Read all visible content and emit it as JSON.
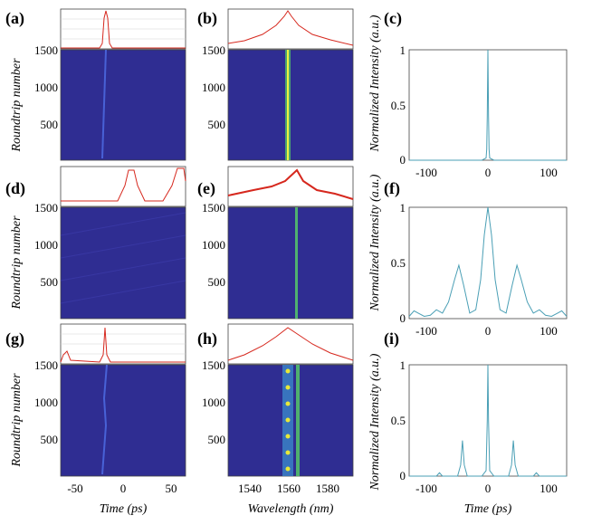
{
  "colors": {
    "heatmap_bg": "#2f2d92",
    "spectrum_line": "#d6281e",
    "acf_line": "#4a9fb5",
    "grid": "#d4d4d4"
  },
  "chart_data": [
    {
      "panel": "(a)",
      "type": "heatmap",
      "ylabel": "Roundtrip number",
      "yticks": [
        "1500",
        "1000",
        "500"
      ],
      "ylim": [
        0,
        1500
      ],
      "xlim": [
        -65,
        65
      ],
      "description_of_trace": "single pulse near -22 ps drifting slightly"
    },
    {
      "panel": "(b)",
      "type": "heatmap",
      "yticks": [
        "1500",
        "1000",
        "500"
      ],
      "ylim": [
        0,
        1500
      ],
      "xlim": [
        1525,
        1595
      ],
      "center": 1560
    },
    {
      "panel": "(c)",
      "type": "line",
      "ylabel": "Normalized Intensity (a.u.)",
      "yticks": [
        "1",
        "0.5",
        "0"
      ],
      "xticks": [
        "-100",
        "0",
        "100"
      ],
      "xlim": [
        -130,
        130
      ],
      "ylim": [
        0,
        1
      ],
      "series": [
        {
          "x": [
            -130,
            -10,
            -3,
            -2,
            -1,
            0,
            1,
            2,
            3,
            10,
            130
          ],
          "y": [
            0,
            0,
            0.02,
            0.1,
            0.4,
            1,
            0.4,
            0.1,
            0.02,
            0,
            0
          ]
        }
      ]
    },
    {
      "panel": "(d)",
      "type": "heatmap",
      "ylabel": "Roundtrip number",
      "yticks": [
        "1500",
        "1000",
        "500"
      ],
      "ylim": [
        0,
        1500
      ],
      "xlim": [
        -65,
        65
      ]
    },
    {
      "panel": "(e)",
      "type": "heatmap",
      "yticks": [
        "1500",
        "1000",
        "500"
      ],
      "ylim": [
        0,
        1500
      ],
      "xlim": [
        1525,
        1595
      ],
      "center": 1565
    },
    {
      "panel": "(f)",
      "type": "line",
      "ylabel": "Normalized Intensity (a.u.)",
      "yticks": [
        "1",
        "0.5",
        "0"
      ],
      "xticks": [
        "-100",
        "0",
        "100"
      ],
      "xlim": [
        -130,
        130
      ],
      "ylim": [
        0,
        1
      ],
      "series": [
        {
          "x": [
            -130,
            -122,
            -115,
            -105,
            -95,
            -85,
            -75,
            -65,
            -55,
            -48,
            -40,
            -30,
            -20,
            -12,
            -6,
            0,
            6,
            12,
            20,
            30,
            40,
            48,
            55,
            65,
            75,
            85,
            95,
            105,
            115,
            122,
            130
          ],
          "y": [
            0.02,
            0.07,
            0.05,
            0.02,
            0.03,
            0.08,
            0.05,
            0.15,
            0.35,
            0.48,
            0.3,
            0.05,
            0.08,
            0.35,
            0.75,
            1.0,
            0.75,
            0.35,
            0.08,
            0.05,
            0.3,
            0.48,
            0.35,
            0.15,
            0.05,
            0.08,
            0.03,
            0.02,
            0.05,
            0.07,
            0.02
          ]
        }
      ]
    },
    {
      "panel": "(g)",
      "type": "heatmap",
      "ylabel": "Roundtrip number",
      "xlabel": "Time (ps)",
      "yticks": [
        "1500",
        "1000",
        "500"
      ],
      "xticks": [
        "-50",
        "0",
        "50"
      ],
      "ylim": [
        0,
        1500
      ],
      "xlim": [
        -65,
        65
      ]
    },
    {
      "panel": "(h)",
      "type": "heatmap",
      "xlabel": "Wavelength (nm)",
      "yticks": [
        "1500",
        "1000",
        "500"
      ],
      "xticks": [
        "1540",
        "1560",
        "1580"
      ],
      "ylim": [
        0,
        1500
      ],
      "xlim": [
        1525,
        1595
      ]
    },
    {
      "panel": "(i)",
      "type": "line",
      "ylabel": "Normalized Intensity (a.u.)",
      "xlabel": "Time (ps)",
      "yticks": [
        "1",
        "0.5",
        "0"
      ],
      "xticks": [
        "-100",
        "0",
        "100"
      ],
      "xlim": [
        -130,
        130
      ],
      "ylim": [
        0,
        1
      ],
      "series": [
        {
          "x": [
            -130,
            -85,
            -80,
            -75,
            -50,
            -45,
            -42,
            -39,
            -34,
            -10,
            -3,
            -1,
            0,
            1,
            3,
            10,
            34,
            39,
            42,
            45,
            50,
            75,
            80,
            85,
            130
          ],
          "y": [
            0,
            0,
            0.03,
            0,
            0,
            0.1,
            0.32,
            0.1,
            0,
            0,
            0.05,
            0.5,
            1.0,
            0.5,
            0.05,
            0,
            0,
            0.1,
            0.32,
            0.1,
            0,
            0,
            0.03,
            0,
            0
          ]
        }
      ]
    }
  ]
}
